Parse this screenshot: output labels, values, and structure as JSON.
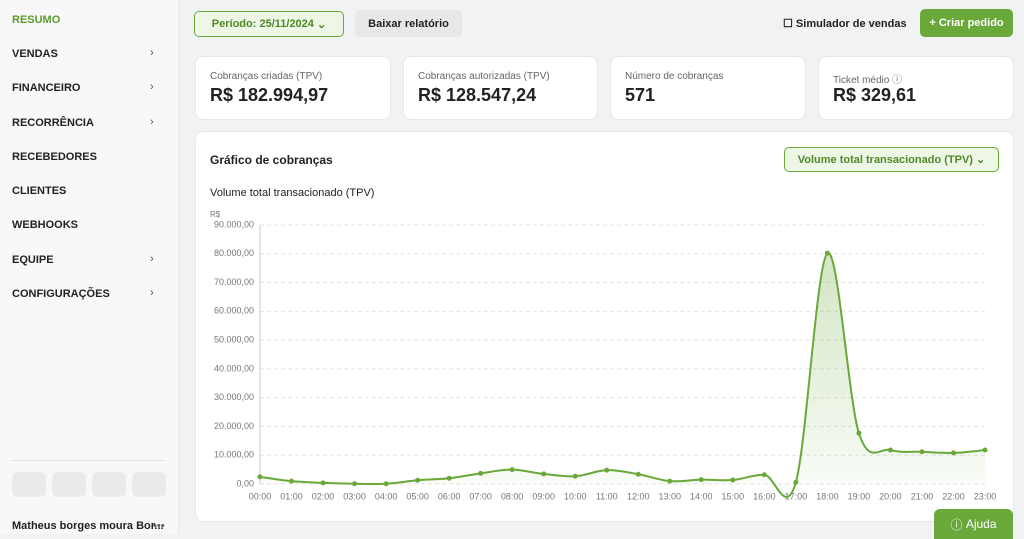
{
  "sidebar": {
    "menu": [
      {
        "label": "RESUMO"
      },
      {
        "label": "VENDAS"
      },
      {
        "label": "FINANCEIRO"
      },
      {
        "label": "RECORRÊNCIA"
      },
      {
        "label": "RECEBEDORES"
      },
      {
        "label": "CLIENTES"
      },
      {
        "label": "WEBHOOKS"
      },
      {
        "label": "EQUIPE"
      },
      {
        "label": "CONFIGURAÇÕES"
      }
    ],
    "user": "Matheus borges moura Bor..."
  },
  "toolbar": {
    "period": "Período: 25/11/2024",
    "download": "Baixar relatório",
    "simulator": "Simulador de vendas",
    "create": "Criar pedido"
  },
  "kpis": [
    {
      "label": "Cobranças criadas (TPV)",
      "value": "R$ 182.994,97"
    },
    {
      "label": "Cobranças autorizadas (TPV)",
      "value": "R$ 128.547,24"
    },
    {
      "label": "Número de cobranças",
      "value": "571"
    },
    {
      "label": "Ticket médio",
      "value": "R$ 329,61"
    }
  ],
  "chart_card": {
    "title": "Gráfico de cobranças",
    "selector": "Volume total transacionado (TPV)"
  },
  "chart_data": {
    "type": "area",
    "title": "Volume total transacionado (TPV)",
    "y_unit": "R$",
    "categories": [
      "00:00",
      "01:00",
      "02:00",
      "03:00",
      "04:00",
      "05:00",
      "06:00",
      "07:00",
      "08:00",
      "09:00",
      "10:00",
      "11:00",
      "12:00",
      "13:00",
      "14:00",
      "15:00",
      "16:00",
      "17:00",
      "18:00",
      "19:00",
      "20:00",
      "21:00",
      "22:00",
      "23:00"
    ],
    "series": [
      {
        "name": "Volume total transacionado (TPV)",
        "color": "#6aa83a",
        "values": [
          2500,
          1000,
          400,
          100,
          100,
          1300,
          2000,
          3700,
          5000,
          3500,
          2700,
          4800,
          3400,
          1000,
          1500,
          1400,
          3200,
          600,
          80200,
          17700,
          11800,
          11200,
          10800,
          11800
        ]
      }
    ],
    "ylim": [
      0,
      90000
    ],
    "yticks": [
      {
        "value": 0,
        "label": "0,00"
      },
      {
        "value": 10000,
        "label": "10.000,00"
      },
      {
        "value": 20000,
        "label": "20.000,00"
      },
      {
        "value": 30000,
        "label": "30.000,00"
      },
      {
        "value": 40000,
        "label": "40.000,00"
      },
      {
        "value": 50000,
        "label": "50.000,00"
      },
      {
        "value": 60000,
        "label": "60.000,00"
      },
      {
        "value": 70000,
        "label": "70.000,00"
      },
      {
        "value": 80000,
        "label": "80.000,00"
      },
      {
        "value": 90000,
        "label": "90.000,00"
      }
    ],
    "grid": true
  },
  "help": "Ajuda"
}
